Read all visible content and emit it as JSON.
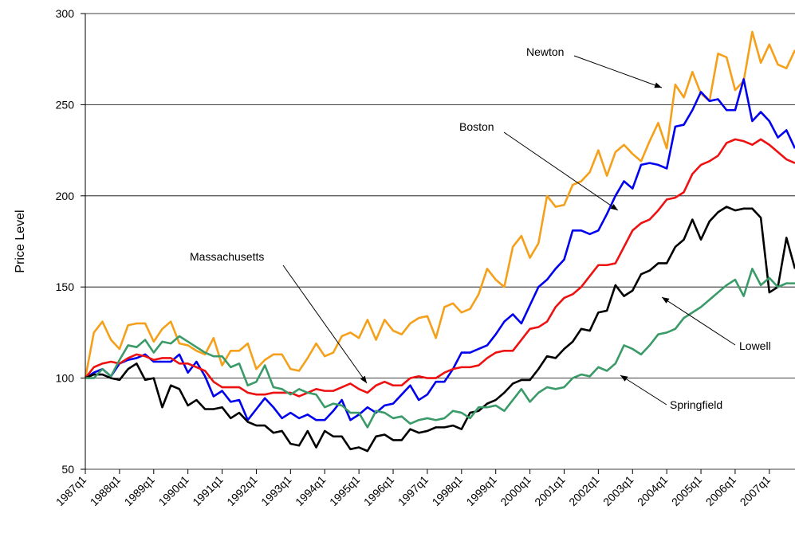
{
  "chart_data": {
    "type": "line",
    "y_label": "Price Level",
    "categories": [
      "1987q1",
      null,
      null,
      null,
      "1988q1",
      null,
      null,
      null,
      "1989q1",
      null,
      null,
      null,
      "1990q1",
      null,
      null,
      null,
      "1991q1",
      null,
      null,
      null,
      "1992q1",
      null,
      null,
      null,
      "1993q1",
      null,
      null,
      null,
      "1994q1",
      null,
      null,
      null,
      "1995q1",
      null,
      null,
      null,
      "1996q1",
      null,
      null,
      null,
      "1997q1",
      null,
      null,
      null,
      "1998q1",
      null,
      null,
      null,
      "1999q1",
      null,
      null,
      null,
      "2000q1",
      null,
      null,
      null,
      "2001q1",
      null,
      null,
      null,
      "2002q1",
      null,
      null,
      null,
      "2003q1",
      null,
      null,
      null,
      "2004q1",
      null,
      null,
      null,
      "2005q1",
      null,
      null,
      null,
      "2006q1",
      null,
      null,
      null,
      "2007q1",
      null,
      null,
      null
    ],
    "series": [
      {
        "name": "Newton",
        "color": "#f5a01a",
        "values": [
          100,
          125,
          131,
          121,
          116,
          129,
          130,
          130,
          120,
          127,
          131,
          119,
          118,
          115,
          113,
          122,
          107,
          115,
          115,
          119,
          105,
          110,
          113,
          113,
          105,
          104,
          111,
          119,
          112,
          114,
          123,
          125,
          122,
          132,
          121,
          132,
          126,
          124,
          130,
          133,
          134,
          122,
          139,
          141,
          136,
          138,
          146,
          160,
          154,
          150,
          172,
          178,
          166,
          174,
          200,
          194,
          195,
          206,
          208,
          213,
          225,
          211,
          224,
          228,
          223,
          219,
          230,
          240,
          226,
          261,
          254,
          268,
          256,
          252,
          278,
          276,
          258,
          263,
          290,
          273,
          283,
          272,
          270,
          280
        ]
      },
      {
        "name": "Boston",
        "color": "#0000ee",
        "values": [
          100,
          103,
          105,
          101,
          108,
          110,
          111,
          113,
          109,
          109,
          109,
          113,
          103,
          109,
          101,
          90,
          93,
          87,
          88,
          77,
          83,
          89,
          84,
          78,
          81,
          78,
          80,
          77,
          77,
          82,
          88,
          77,
          80,
          84,
          81,
          85,
          86,
          91,
          96,
          88,
          91,
          98,
          98,
          105,
          114,
          114,
          116,
          118,
          124,
          131,
          135,
          130,
          140,
          150,
          154,
          160,
          165,
          181,
          181,
          179,
          181,
          190,
          200,
          208,
          204,
          217,
          218,
          217,
          215,
          238,
          239,
          247,
          257,
          252,
          253,
          247,
          247,
          264,
          241,
          246,
          241,
          232,
          236,
          226
        ]
      },
      {
        "name": "Massachusetts",
        "color": "#ee1111",
        "values": [
          100,
          106,
          108,
          109,
          108,
          111,
          113,
          112,
          110,
          111,
          111,
          108,
          108,
          106,
          104,
          98,
          95,
          95,
          95,
          92,
          91,
          91,
          92,
          92,
          92,
          90,
          92,
          94,
          93,
          93,
          95,
          97,
          94,
          92,
          96,
          98,
          96,
          96,
          100,
          101,
          100,
          100,
          103,
          105,
          106,
          106,
          107,
          111,
          114,
          115,
          115,
          121,
          127,
          128,
          131,
          139,
          144,
          146,
          150,
          156,
          162,
          162,
          163,
          172,
          181,
          185,
          187,
          192,
          198,
          199,
          202,
          212,
          217,
          219,
          222,
          229,
          231,
          230,
          228,
          231,
          228,
          224,
          220,
          218
        ]
      },
      {
        "name": "Lowell",
        "color": "#000000",
        "values": [
          100,
          102,
          102,
          100,
          99,
          105,
          108,
          99,
          100,
          84,
          96,
          94,
          85,
          88,
          83,
          83,
          84,
          78,
          81,
          76,
          74,
          74,
          70,
          71,
          64,
          63,
          71,
          62,
          71,
          68,
          68,
          61,
          62,
          60,
          68,
          69,
          66,
          66,
          72,
          70,
          71,
          73,
          73,
          74,
          72,
          81,
          82,
          86,
          88,
          92,
          97,
          99,
          99,
          105,
          112,
          111,
          116,
          120,
          127,
          126,
          136,
          137,
          151,
          145,
          148,
          157,
          159,
          163,
          163,
          172,
          176,
          187,
          176,
          186,
          191,
          194,
          192,
          193,
          193,
          188,
          147,
          150,
          177,
          160
        ]
      },
      {
        "name": "Springfield",
        "color": "#3a9a68",
        "values": [
          100,
          100,
          105,
          101,
          110,
          118,
          117,
          121,
          114,
          120,
          119,
          123,
          120,
          117,
          114,
          112,
          112,
          106,
          108,
          96,
          98,
          107,
          95,
          94,
          91,
          94,
          92,
          91,
          84,
          86,
          85,
          81,
          81,
          73,
          82,
          81,
          78,
          79,
          75,
          77,
          78,
          77,
          78,
          82,
          81,
          78,
          84,
          84,
          85,
          82,
          88,
          94,
          87,
          92,
          95,
          94,
          95,
          100,
          102,
          101,
          106,
          104,
          108,
          118,
          116,
          113,
          118,
          124,
          125,
          127,
          133,
          136,
          139,
          143,
          147,
          151,
          154,
          145,
          160,
          151,
          155,
          150,
          152,
          152
        ]
      }
    ],
    "ylim": [
      50,
      300
    ],
    "yticks": [
      50,
      100,
      150,
      200,
      250,
      300
    ],
    "grid": true
  }
}
